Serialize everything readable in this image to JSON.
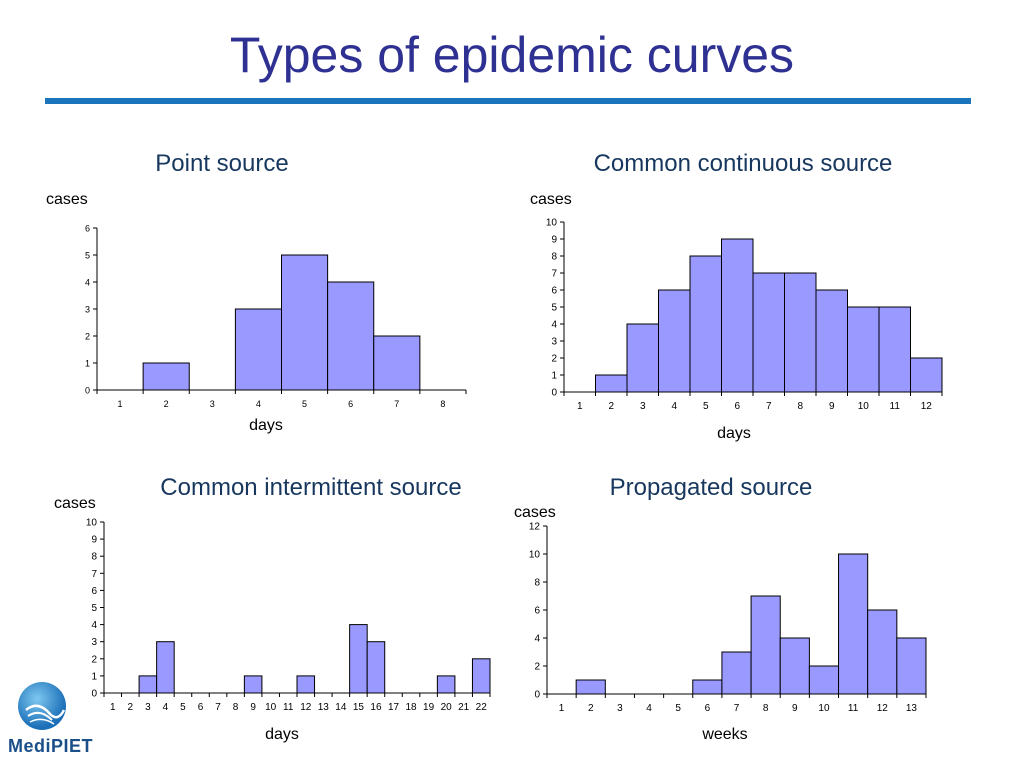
{
  "slide": {
    "title": "Types of epidemic curves",
    "logo_text": "MediPIET",
    "accent_color": "#1b75bc",
    "bar_color": "#9999ff"
  },
  "chart_data": [
    {
      "type": "bar",
      "title": "Point source",
      "ylabel": "cases",
      "xlabel": "days",
      "categories": [
        "1",
        "2",
        "3",
        "4",
        "5",
        "6",
        "7",
        "8"
      ],
      "values": [
        0,
        1,
        0,
        3,
        5,
        4,
        2,
        0
      ],
      "ylim": [
        0,
        6
      ],
      "yticks": [
        0,
        1,
        2,
        3,
        4,
        5,
        6
      ]
    },
    {
      "type": "bar",
      "title": "Common continuous source",
      "ylabel": "cases",
      "xlabel": "days",
      "categories": [
        "1",
        "2",
        "3",
        "4",
        "5",
        "6",
        "7",
        "8",
        "9",
        "10",
        "11",
        "12"
      ],
      "values": [
        0,
        1,
        4,
        6,
        8,
        9,
        7,
        7,
        6,
        5,
        5,
        2
      ],
      "ylim": [
        0,
        10
      ],
      "yticks": [
        0,
        1,
        2,
        3,
        4,
        5,
        6,
        7,
        8,
        9,
        10
      ]
    },
    {
      "type": "bar",
      "title": "Common intermittent source",
      "ylabel": "cases",
      "xlabel": "days",
      "categories": [
        "1",
        "2",
        "3",
        "4",
        "5",
        "6",
        "7",
        "8",
        "9",
        "10",
        "11",
        "12",
        "13",
        "14",
        "15",
        "16",
        "17",
        "18",
        "19",
        "20",
        "21",
        "22"
      ],
      "values": [
        0,
        0,
        1,
        3,
        0,
        0,
        0,
        0,
        1,
        0,
        0,
        1,
        0,
        0,
        4,
        3,
        0,
        0,
        0,
        1,
        0,
        2
      ],
      "ylim": [
        0,
        10
      ],
      "yticks": [
        0,
        1,
        2,
        3,
        4,
        5,
        6,
        7,
        8,
        9,
        10
      ]
    },
    {
      "type": "bar",
      "title": "Propagated source",
      "ylabel": "cases",
      "xlabel": "weeks",
      "categories": [
        "1",
        "2",
        "3",
        "4",
        "5",
        "6",
        "7",
        "8",
        "9",
        "10",
        "11",
        "12",
        "13"
      ],
      "values": [
        0,
        1,
        0,
        0,
        0,
        1,
        3,
        7,
        4,
        2,
        10,
        6,
        4
      ],
      "ylim": [
        0,
        12
      ],
      "yticks": [
        0,
        2,
        4,
        6,
        8,
        10,
        12
      ]
    }
  ]
}
